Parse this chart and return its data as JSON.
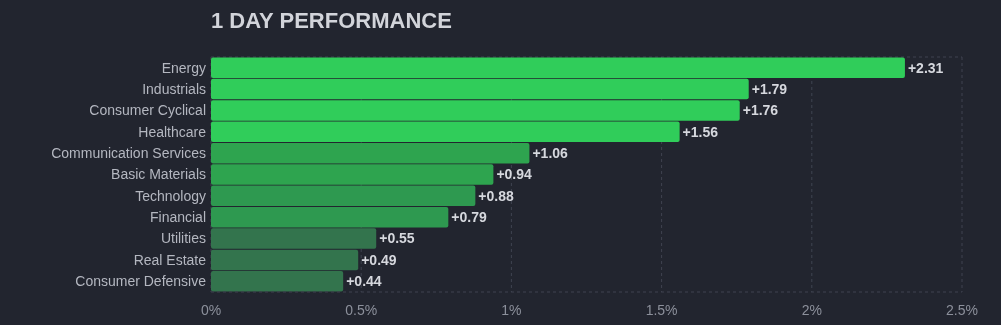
{
  "chart_data": {
    "type": "bar",
    "title": "1 DAY PERFORMANCE",
    "orientation": "horizontal",
    "categories": [
      "Energy",
      "Industrials",
      "Consumer Cyclical",
      "Healthcare",
      "Communication Services",
      "Basic Materials",
      "Technology",
      "Financial",
      "Utilities",
      "Real Estate",
      "Consumer Defensive"
    ],
    "values": [
      2.31,
      1.79,
      1.76,
      1.56,
      1.06,
      0.94,
      0.88,
      0.79,
      0.55,
      0.49,
      0.44
    ],
    "colors": [
      "#30cd5a",
      "#30cd5a",
      "#30cd5a",
      "#30cd5a",
      "#2ea44f",
      "#2ea44f",
      "#2e9950",
      "#2e9950",
      "#33744d",
      "#33744d",
      "#33744d"
    ],
    "value_labels": [
      "+2.31",
      "+1.79",
      "+1.76",
      "+1.56",
      "+1.06",
      "+0.94",
      "+0.88",
      "+0.79",
      "+0.55",
      "+0.49",
      "+0.44"
    ],
    "xlim": [
      0,
      2.5
    ],
    "xticks": [
      {
        "value": 0,
        "label": "0%"
      },
      {
        "value": 0.5,
        "label": "0.5%"
      },
      {
        "value": 1,
        "label": "1%"
      },
      {
        "value": 1.5,
        "label": "1.5%"
      },
      {
        "value": 2,
        "label": "2%"
      },
      {
        "value": 2.5,
        "label": "2.5%"
      }
    ],
    "grid": "x"
  }
}
